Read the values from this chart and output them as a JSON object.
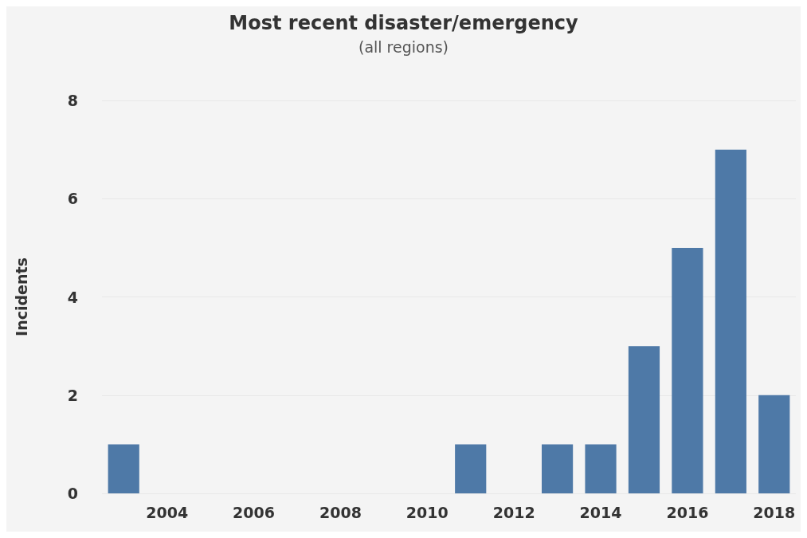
{
  "chart_data": {
    "type": "bar",
    "title": "Most recent disaster/emergency",
    "subtitle": "(all regions)",
    "ylabel": "Incidents",
    "categories": [
      null,
      "2004",
      null,
      "2006",
      null,
      "2008",
      null,
      "2010",
      null,
      "2012",
      null,
      "2014",
      null,
      "2016",
      null,
      "2018"
    ],
    "values": [
      1,
      0,
      0,
      0,
      0,
      0,
      0,
      0,
      1,
      0,
      1,
      1,
      3,
      5,
      7,
      2
    ],
    "color": "#4e79a7",
    "ylim": [
      0,
      8
    ],
    "yticks": [
      0,
      2,
      4,
      6,
      8
    ],
    "grid": "y"
  }
}
